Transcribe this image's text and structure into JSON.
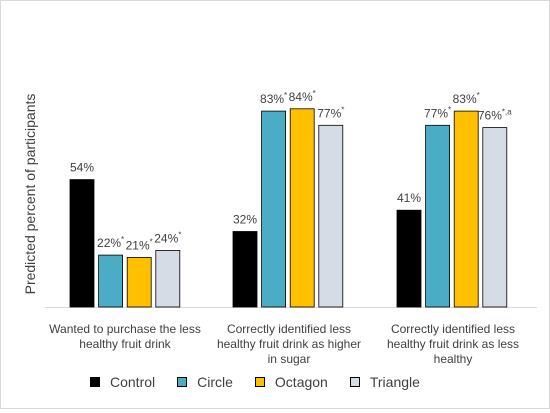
{
  "chart_data": {
    "type": "bar",
    "title": "",
    "xlabel": "",
    "ylabel": "Predicted percent of participants",
    "ylim": [
      0,
      100
    ],
    "grid": false,
    "legend_position": "bottom",
    "categories": [
      [
        "Wanted to purchase the less",
        "healthy fruit drink"
      ],
      [
        "Correctly identified less",
        "healthy fruit drink as higher",
        "in sugar"
      ],
      [
        "Correctly identified less",
        "healthy fruit drink as less",
        "healthy"
      ]
    ],
    "series": [
      {
        "name": "Control",
        "color": "#000000",
        "values": [
          54,
          32,
          41
        ],
        "labels": [
          [
            "54%",
            ""
          ],
          [
            "32%",
            ""
          ],
          [
            "41%",
            ""
          ]
        ]
      },
      {
        "name": "Circle",
        "color": "#4bacc6",
        "values": [
          22,
          83,
          77
        ],
        "labels": [
          [
            "22%",
            "*"
          ],
          [
            "83%",
            "*"
          ],
          [
            "77%",
            "*"
          ]
        ]
      },
      {
        "name": "Octagon",
        "color": "#ffc000",
        "values": [
          21,
          84,
          83
        ],
        "labels": [
          [
            "21%",
            "*"
          ],
          [
            "84%",
            "*"
          ],
          [
            "83%",
            "*"
          ]
        ]
      },
      {
        "name": "Triangle",
        "color": "#d6dce5",
        "values": [
          24,
          77,
          76
        ],
        "labels": [
          [
            "24%",
            "*"
          ],
          [
            "77%",
            "*"
          ],
          [
            "76%",
            "*,a"
          ]
        ]
      }
    ]
  }
}
